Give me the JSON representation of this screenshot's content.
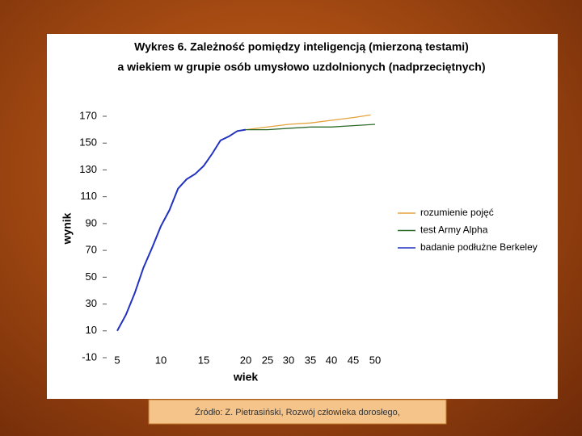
{
  "chart_data": {
    "type": "line",
    "title_lines": [
      "Wykres 6. Zależność pomiędzy inteligencją (mierzoną testami)",
      "a wiekiem w grupie osób umysłowo uzdolnionych (nadprzeciętnych)"
    ],
    "x_label": "wiek",
    "y_label": "wynik",
    "xlim": [
      5,
      50
    ],
    "xticks": [
      5,
      10,
      15,
      20,
      25,
      30,
      35,
      40,
      45,
      50
    ],
    "ylim": [
      -10,
      170
    ],
    "yticks": [
      170,
      150,
      130,
      110,
      90,
      70,
      50,
      30,
      10,
      -10
    ],
    "legend": "right",
    "series": [
      {
        "name": "rozumienie pojęć",
        "color": "#e3a23a",
        "x": [
          20,
          25,
          30,
          35,
          40,
          45,
          49
        ],
        "values": [
          160,
          162,
          164,
          165,
          167,
          169,
          171
        ]
      },
      {
        "name": "test Army Alpha",
        "color": "#2e6b2a",
        "x": [
          20,
          25,
          30,
          35,
          40,
          45,
          50
        ],
        "values": [
          160,
          160,
          161,
          162,
          162,
          163,
          164
        ]
      },
      {
        "name": "badanie podłużne Berkeley",
        "color": "#2232c0",
        "x": [
          5,
          6,
          7,
          8,
          9,
          10,
          11,
          12,
          13,
          14,
          15,
          16,
          17,
          18,
          19,
          20
        ],
        "values": [
          10,
          22,
          38,
          57,
          72,
          88,
          100,
          116,
          123,
          127,
          133,
          142,
          152,
          155,
          159,
          160
        ]
      }
    ]
  },
  "source": "Źródło: Z. Pietrasiński, Rozwój człowieka dorosłego,"
}
